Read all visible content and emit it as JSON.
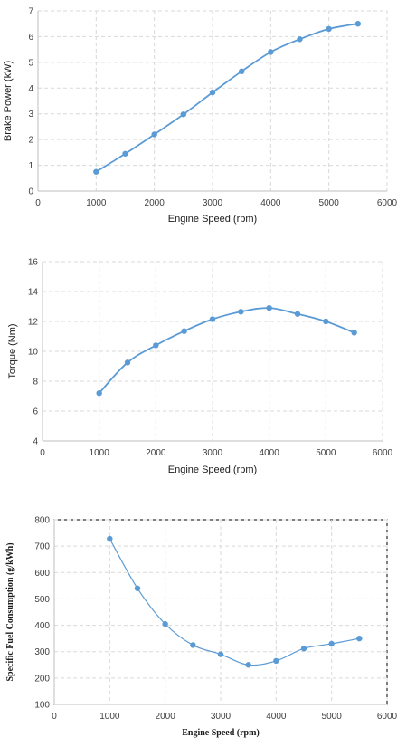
{
  "chart_data": [
    {
      "type": "line",
      "xlabel": "Engine Speed (rpm)",
      "ylabel": "Brake Power (kW)",
      "xlim": [
        0,
        6000
      ],
      "ylim": [
        0,
        7
      ],
      "xticks": [
        0,
        1000,
        2000,
        3000,
        4000,
        5000,
        6000
      ],
      "yticks": [
        0,
        1,
        2,
        3,
        4,
        5,
        6,
        7
      ],
      "grid": true,
      "color": "#5b9bd5",
      "series": [
        {
          "x": [
            1000,
            1500,
            2000,
            2500,
            3000,
            3500,
            4000,
            4500,
            5000,
            5500
          ],
          "y": [
            0.75,
            1.45,
            2.2,
            2.98,
            3.83,
            4.65,
            5.4,
            5.9,
            6.3,
            6.5
          ]
        }
      ]
    },
    {
      "type": "line",
      "xlabel": "Engine Speed (rpm)",
      "ylabel": "Torque (Nm)",
      "xlim": [
        0,
        6000
      ],
      "ylim": [
        4,
        16
      ],
      "xticks": [
        0,
        1000,
        2000,
        3000,
        4000,
        5000,
        6000
      ],
      "yticks": [
        4,
        6,
        8,
        10,
        12,
        14,
        16
      ],
      "grid": true,
      "color": "#5b9bd5",
      "series": [
        {
          "x": [
            1000,
            1500,
            2000,
            2500,
            3000,
            3500,
            4000,
            4500,
            5000,
            5500
          ],
          "y": [
            7.2,
            9.25,
            10.4,
            11.35,
            12.15,
            12.65,
            12.9,
            12.5,
            12.0,
            11.25
          ]
        }
      ]
    },
    {
      "type": "line",
      "xlabel": "Engine Speed (rpm)",
      "ylabel": "Specific Fuel Consumption (g/kWh)",
      "xlim": [
        0,
        6000
      ],
      "ylim": [
        100,
        800
      ],
      "xticks": [
        0,
        1000,
        2000,
        3000,
        4000,
        5000,
        6000
      ],
      "yticks": [
        100,
        200,
        300,
        400,
        500,
        600,
        700,
        800
      ],
      "grid": true,
      "color": "#5b9bd5",
      "series": [
        {
          "x": [
            1000,
            1500,
            2000,
            2500,
            3000,
            3500,
            4000,
            4500,
            5000,
            5500
          ],
          "y": [
            728,
            540,
            405,
            325,
            290,
            250,
            265,
            312,
            330,
            350
          ]
        }
      ]
    }
  ]
}
